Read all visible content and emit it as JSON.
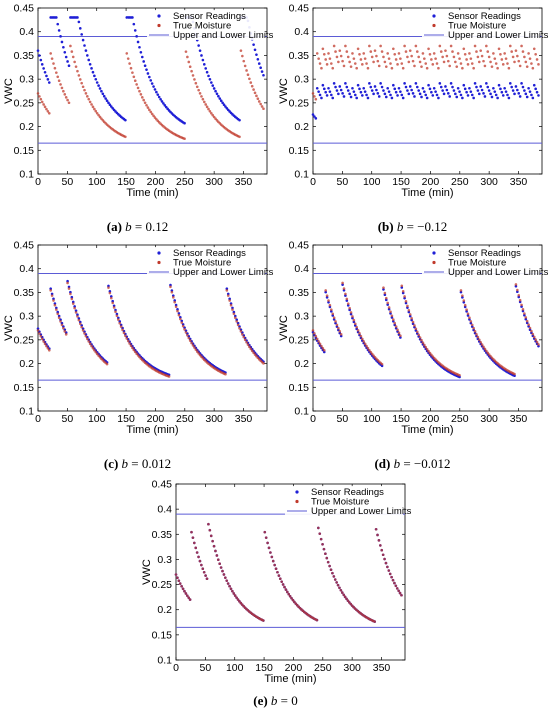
{
  "chart_data": [
    {
      "type": "scatter",
      "panel_tag": "(a)",
      "caption_var": "b",
      "caption_rest": " = 0.12",
      "xlabel": "Time (min)",
      "ylabel": "VWC",
      "xlim": [
        0,
        390
      ],
      "ylim": [
        0.1,
        0.45
      ],
      "xticks": [
        0,
        50,
        100,
        150,
        200,
        250,
        300,
        350
      ],
      "yticks": [
        0.1,
        0.15,
        0.2,
        0.25,
        0.3,
        0.35,
        0.4,
        0.45
      ],
      "grid": false,
      "legend_position": "top-right",
      "legend": [
        "Sensor Readings",
        "True Moisture",
        "Upper and Lower Limits"
      ],
      "limits": [
        0.165,
        0.39
      ],
      "irrigation_times": [
        20,
        55,
        150,
        250,
        345
      ],
      "sensor_offset": 0.12,
      "sensor_variant": "quantized",
      "colors": {
        "sensor": "#1f1fd6",
        "true": "#c0392b",
        "limit": "#5b5bd6"
      }
    },
    {
      "type": "scatter",
      "panel_tag": "(b)",
      "caption_var": "b",
      "caption_rest": " = −0.12",
      "xlabel": "Time (min)",
      "ylabel": "VWC",
      "xlim": [
        0,
        390
      ],
      "ylim": [
        0.1,
        0.45
      ],
      "xticks": [
        0,
        50,
        100,
        150,
        200,
        250,
        300,
        350
      ],
      "yticks": [
        0.1,
        0.15,
        0.2,
        0.25,
        0.3,
        0.35,
        0.4,
        0.45
      ],
      "grid": false,
      "legend_position": "top-right",
      "legend": [
        "Sensor Readings",
        "True Moisture",
        "Upper and Lower Limits"
      ],
      "limits": [
        0.165,
        0.39
      ],
      "irrigation_times": [
        5,
        15,
        25,
        35,
        45,
        55,
        65,
        75,
        85,
        95,
        105,
        115,
        125,
        135,
        145,
        155,
        165,
        175,
        185,
        195,
        205,
        215,
        225,
        235,
        245,
        255,
        265,
        275,
        285,
        295,
        305,
        315,
        325,
        335,
        345,
        355,
        365,
        375
      ],
      "sensor_offset": -0.12,
      "sensor_variant": "frequent",
      "colors": {
        "sensor": "#1f1fd6",
        "true": "#c0392b",
        "limit": "#5b5bd6"
      }
    },
    {
      "type": "scatter",
      "panel_tag": "(c)",
      "caption_var": "b",
      "caption_rest": " = 0.012",
      "xlabel": "Time (min)",
      "ylabel": "VWC",
      "xlim": [
        0,
        390
      ],
      "ylim": [
        0.1,
        0.45
      ],
      "xticks": [
        0,
        50,
        100,
        150,
        200,
        250,
        300,
        350
      ],
      "yticks": [
        0.1,
        0.15,
        0.2,
        0.25,
        0.3,
        0.35,
        0.4,
        0.45
      ],
      "grid": false,
      "legend_position": "top-right",
      "legend": [
        "Sensor Readings",
        "True Moisture",
        "Upper and Lower Limits"
      ],
      "limits": [
        0.165,
        0.39
      ],
      "irrigation_times": [
        20,
        50,
        120,
        225,
        320
      ],
      "sensor_offset": 0.012,
      "sensor_variant": "normal",
      "colors": {
        "sensor": "#1f1fd6",
        "true": "#c0392b",
        "limit": "#5b5bd6"
      }
    },
    {
      "type": "scatter",
      "panel_tag": "(d)",
      "caption_var": "b",
      "caption_rest": " = −0.012",
      "xlabel": "Time (min)",
      "ylabel": "VWC",
      "xlim": [
        0,
        390
      ],
      "ylim": [
        0.1,
        0.45
      ],
      "xticks": [
        0,
        50,
        100,
        150,
        200,
        250,
        300,
        350
      ],
      "yticks": [
        0.1,
        0.15,
        0.2,
        0.25,
        0.3,
        0.35,
        0.4,
        0.45
      ],
      "grid": false,
      "legend_position": "top-right",
      "legend": [
        "Sensor Readings",
        "True Moisture",
        "Upper and Lower Limits"
      ],
      "limits": [
        0.165,
        0.39
      ],
      "irrigation_times": [
        20,
        50,
        120,
        150,
        250,
        345
      ],
      "sensor_offset": -0.012,
      "sensor_variant": "normal",
      "colors": {
        "sensor": "#1f1fd6",
        "true": "#c0392b",
        "limit": "#5b5bd6"
      }
    },
    {
      "type": "scatter",
      "panel_tag": "(e)",
      "caption_var": "b",
      "caption_rest": " = 0",
      "xlabel": "Time (min)",
      "ylabel": "VWC",
      "xlim": [
        0,
        390
      ],
      "ylim": [
        0.1,
        0.45
      ],
      "xticks": [
        0,
        50,
        100,
        150,
        200,
        250,
        300,
        350
      ],
      "yticks": [
        0.1,
        0.15,
        0.2,
        0.25,
        0.3,
        0.35,
        0.4,
        0.45
      ],
      "grid": false,
      "legend_position": "top-right",
      "legend": [
        "Sensor Readings",
        "True Moisture",
        "Upper and Lower Limits"
      ],
      "limits": [
        0.165,
        0.39
      ],
      "irrigation_times": [
        25,
        55,
        150,
        240,
        340
      ],
      "sensor_offset": 0,
      "sensor_variant": "normal",
      "colors": {
        "sensor": "#1f1fd6",
        "true": "#c0392b",
        "limit": "#5b5bd6"
      }
    }
  ]
}
